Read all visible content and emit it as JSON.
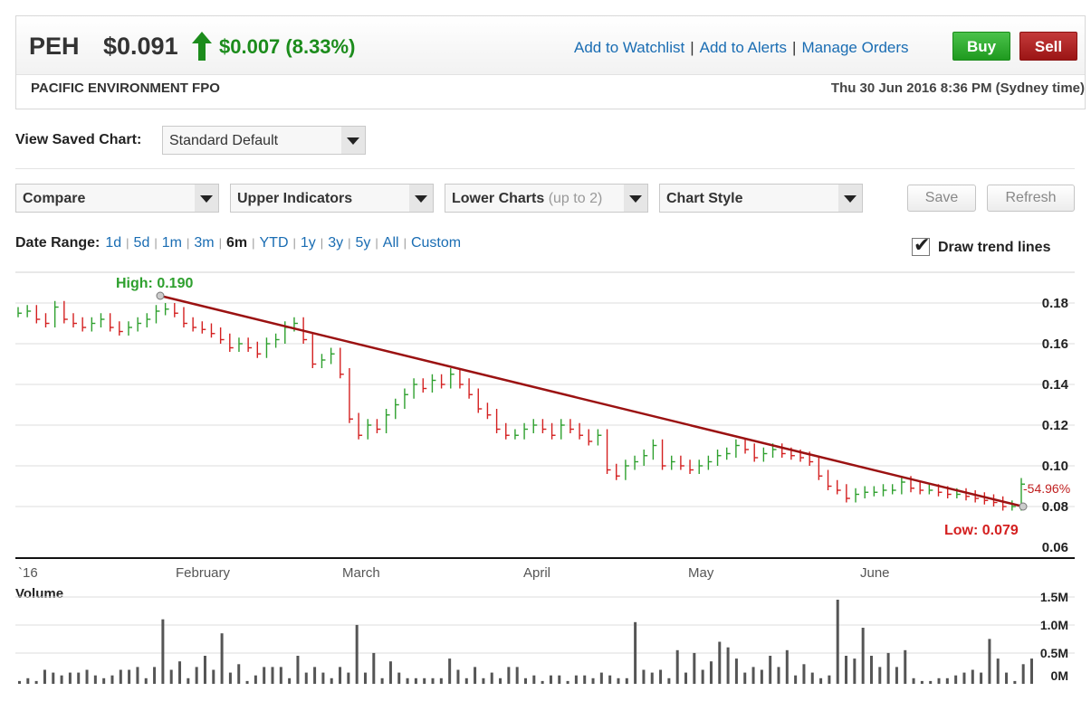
{
  "header": {
    "code": "PEH",
    "price": "$0.091",
    "change": "$0.007 (8.33%)",
    "links": [
      "Add to Watchlist",
      "Add to Alerts",
      "Manage Orders"
    ],
    "buy_label": "Buy",
    "sell_label": "Sell",
    "company": "PACIFIC ENVIRONMENT FPO",
    "datetime": "Thu 30 Jun 2016 8:36 PM (Sydney time)",
    "up_color": "#1c8c1c"
  },
  "saved_chart": {
    "label": "View Saved Chart:",
    "value": "Standard Default"
  },
  "controls": {
    "compare": "Compare",
    "upper": "Upper Indicators",
    "lower": "Lower Charts",
    "lower_note": "(up to 2)",
    "style": "Chart Style",
    "save": "Save",
    "refresh": "Refresh"
  },
  "date_range": {
    "label": "Date Range:",
    "options": [
      "1d",
      "5d",
      "1m",
      "3m",
      "6m",
      "YTD",
      "1y",
      "3y",
      "5y",
      "All",
      "Custom"
    ],
    "active": "6m"
  },
  "trend_lines": {
    "label": "Draw trend lines",
    "checked": true
  },
  "chart_data": [
    {
      "type": "ohlc",
      "series_colors": {
        "up": "#2ea02e",
        "down": "#d42020",
        "trend": "#9b1212"
      },
      "y_ticks": [
        "0.18",
        "0.16",
        "0.14",
        "0.12",
        "0.10",
        "0.08",
        "0.06"
      ],
      "ylim": [
        0.06,
        0.19
      ],
      "x_labels": [
        "`16",
        "February",
        "March",
        "April",
        "May",
        "June"
      ],
      "high_label": "High: 0.190",
      "low_label": "Low: 0.079",
      "trend_change": "-54.96%",
      "trend_line": {
        "from": [
          "early Feb",
          0.185
        ],
        "to": [
          "end Jun",
          0.084
        ]
      },
      "closes": [
        0.175,
        0.176,
        0.172,
        0.17,
        0.178,
        0.172,
        0.17,
        0.168,
        0.17,
        0.172,
        0.168,
        0.166,
        0.168,
        0.17,
        0.172,
        0.176,
        0.177,
        0.175,
        0.17,
        0.168,
        0.167,
        0.165,
        0.162,
        0.158,
        0.16,
        0.158,
        0.155,
        0.16,
        0.162,
        0.168,
        0.17,
        0.162,
        0.15,
        0.152,
        0.155,
        0.145,
        0.123,
        0.115,
        0.12,
        0.118,
        0.125,
        0.13,
        0.135,
        0.14,
        0.138,
        0.142,
        0.14,
        0.145,
        0.14,
        0.135,
        0.128,
        0.125,
        0.118,
        0.115,
        0.115,
        0.118,
        0.12,
        0.118,
        0.115,
        0.12,
        0.118,
        0.115,
        0.112,
        0.115,
        0.098,
        0.095,
        0.1,
        0.102,
        0.105,
        0.11,
        0.1,
        0.102,
        0.1,
        0.098,
        0.1,
        0.102,
        0.105,
        0.106,
        0.11,
        0.108,
        0.104,
        0.106,
        0.108,
        0.106,
        0.105,
        0.104,
        0.102,
        0.095,
        0.09,
        0.088,
        0.084,
        0.086,
        0.087,
        0.087,
        0.088,
        0.088,
        0.092,
        0.089,
        0.088,
        0.088,
        0.087,
        0.086,
        0.086,
        0.085,
        0.084,
        0.083,
        0.082,
        0.08,
        0.08,
        0.091
      ]
    },
    {
      "type": "bar",
      "title": "Volume",
      "y_ticks": [
        "1.5M",
        "1.0M",
        "0.5M",
        "0M"
      ],
      "ylim": [
        0,
        1.6
      ],
      "values": [
        0.05,
        0.1,
        0.05,
        0.25,
        0.2,
        0.15,
        0.2,
        0.2,
        0.25,
        0.15,
        0.1,
        0.15,
        0.25,
        0.25,
        0.3,
        0.1,
        0.3,
        1.15,
        0.25,
        0.4,
        0.1,
        0.3,
        0.5,
        0.25,
        0.9,
        0.2,
        0.35,
        0.05,
        0.15,
        0.3,
        0.3,
        0.3,
        0.1,
        0.5,
        0.2,
        0.3,
        0.2,
        0.1,
        0.3,
        0.2,
        1.05,
        0.2,
        0.55,
        0.1,
        0.4,
        0.2,
        0.1,
        0.1,
        0.1,
        0.1,
        0.1,
        0.45,
        0.25,
        0.1,
        0.3,
        0.1,
        0.2,
        0.1,
        0.3,
        0.3,
        0.1,
        0.15,
        0.05,
        0.15,
        0.15,
        0.05,
        0.15,
        0.15,
        0.1,
        0.2,
        0.15,
        0.1,
        0.1,
        1.1,
        0.25,
        0.2,
        0.25,
        0.1,
        0.6,
        0.2,
        0.55,
        0.25,
        0.4,
        0.75,
        0.65,
        0.45,
        0.2,
        0.3,
        0.25,
        0.5,
        0.3,
        0.6,
        0.15,
        0.35,
        0.2,
        0.1,
        0.15,
        1.5,
        0.5,
        0.45,
        1.0,
        0.5,
        0.3,
        0.55,
        0.3,
        0.6,
        0.1,
        0.05,
        0.05,
        0.1,
        0.1,
        0.15,
        0.2,
        0.25,
        0.2,
        0.8,
        0.45,
        0.2,
        0.05,
        0.35,
        0.45
      ]
    }
  ]
}
